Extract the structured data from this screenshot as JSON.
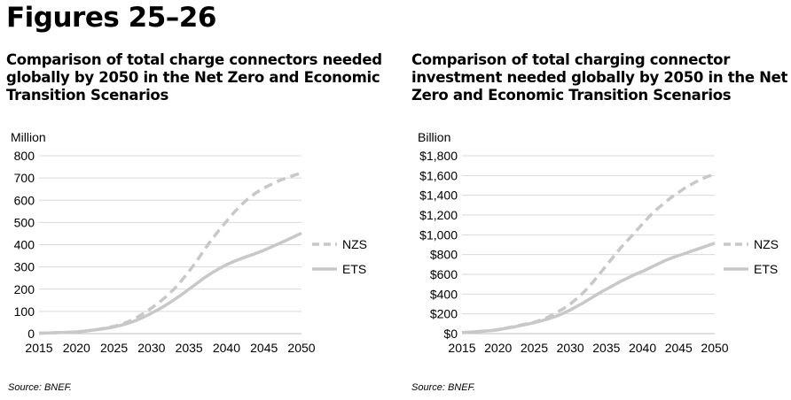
{
  "page": {
    "title": "Figures 25–26"
  },
  "chart_data": [
    {
      "type": "line",
      "title": "Comparison of total charge connectors needed globally by 2050 in the Net Zero and Economic Transition Scenarios",
      "unit_label": "Million",
      "source": "Source: BNEF.",
      "x": [
        2015,
        2016,
        2017,
        2018,
        2019,
        2020,
        2021,
        2022,
        2023,
        2024,
        2025,
        2026,
        2027,
        2028,
        2029,
        2030,
        2031,
        2032,
        2033,
        2034,
        2035,
        2036,
        2037,
        2038,
        2039,
        2040,
        2041,
        2042,
        2043,
        2044,
        2045,
        2046,
        2047,
        2048,
        2049,
        2050
      ],
      "xticks": [
        "2015",
        "2020",
        "2025",
        "2030",
        "2035",
        "2040",
        "2045",
        "2050"
      ],
      "yticks": [
        "0",
        "100",
        "200",
        "300",
        "400",
        "500",
        "600",
        "700",
        "800"
      ],
      "ylim": [
        0,
        800
      ],
      "series": [
        {
          "name": "NZS",
          "style": "dashed",
          "color": "#c8c8c8",
          "values": [
            2,
            3,
            4,
            5,
            6,
            8,
            11,
            15,
            20,
            26,
            33,
            42,
            55,
            72,
            92,
            115,
            140,
            168,
            200,
            238,
            280,
            325,
            375,
            422,
            465,
            505,
            545,
            580,
            610,
            635,
            655,
            672,
            688,
            700,
            712,
            723
          ]
        },
        {
          "name": "ETS",
          "style": "solid",
          "color": "#c8c8c8",
          "values": [
            2,
            3,
            4,
            5,
            6,
            8,
            11,
            15,
            19,
            24,
            30,
            38,
            48,
            60,
            75,
            92,
            110,
            130,
            152,
            175,
            200,
            225,
            250,
            272,
            292,
            310,
            325,
            338,
            350,
            362,
            375,
            390,
            405,
            420,
            436,
            452
          ]
        }
      ]
    },
    {
      "type": "line",
      "title": "Comparison of total charging connector investment needed globally by 2050 in the Net Zero and Economic Transition Scenarios",
      "unit_label": "Billion",
      "source": "Source: BNEF.",
      "x": [
        2015,
        2016,
        2017,
        2018,
        2019,
        2020,
        2021,
        2022,
        2023,
        2024,
        2025,
        2026,
        2027,
        2028,
        2029,
        2030,
        2031,
        2032,
        2033,
        2034,
        2035,
        2036,
        2037,
        2038,
        2039,
        2040,
        2041,
        2042,
        2043,
        2044,
        2045,
        2046,
        2047,
        2048,
        2049,
        2050
      ],
      "xticks": [
        "2015",
        "2020",
        "2025",
        "2030",
        "2035",
        "2040",
        "2045",
        "2050"
      ],
      "yticks": [
        "$0",
        "$200",
        "$400",
        "$600",
        "$800",
        "$1,000",
        "$1,200",
        "$1,400",
        "$1,600",
        "$1,800"
      ],
      "ylim": [
        0,
        1800
      ],
      "series": [
        {
          "name": "NZS",
          "style": "dashed",
          "color": "#c8c8c8",
          "values": [
            10,
            15,
            20,
            25,
            30,
            40,
            55,
            70,
            85,
            100,
            115,
            140,
            170,
            210,
            250,
            300,
            360,
            430,
            510,
            600,
            690,
            780,
            870,
            950,
            1030,
            1110,
            1190,
            1260,
            1320,
            1380,
            1430,
            1480,
            1520,
            1560,
            1590,
            1610
          ]
        },
        {
          "name": "ETS",
          "style": "solid",
          "color": "#c8c8c8",
          "values": [
            10,
            15,
            20,
            25,
            30,
            40,
            52,
            65,
            80,
            95,
            110,
            130,
            150,
            175,
            205,
            240,
            280,
            320,
            365,
            410,
            450,
            490,
            530,
            565,
            600,
            630,
            665,
            700,
            735,
            765,
            790,
            815,
            840,
            865,
            890,
            915
          ]
        }
      ]
    }
  ]
}
